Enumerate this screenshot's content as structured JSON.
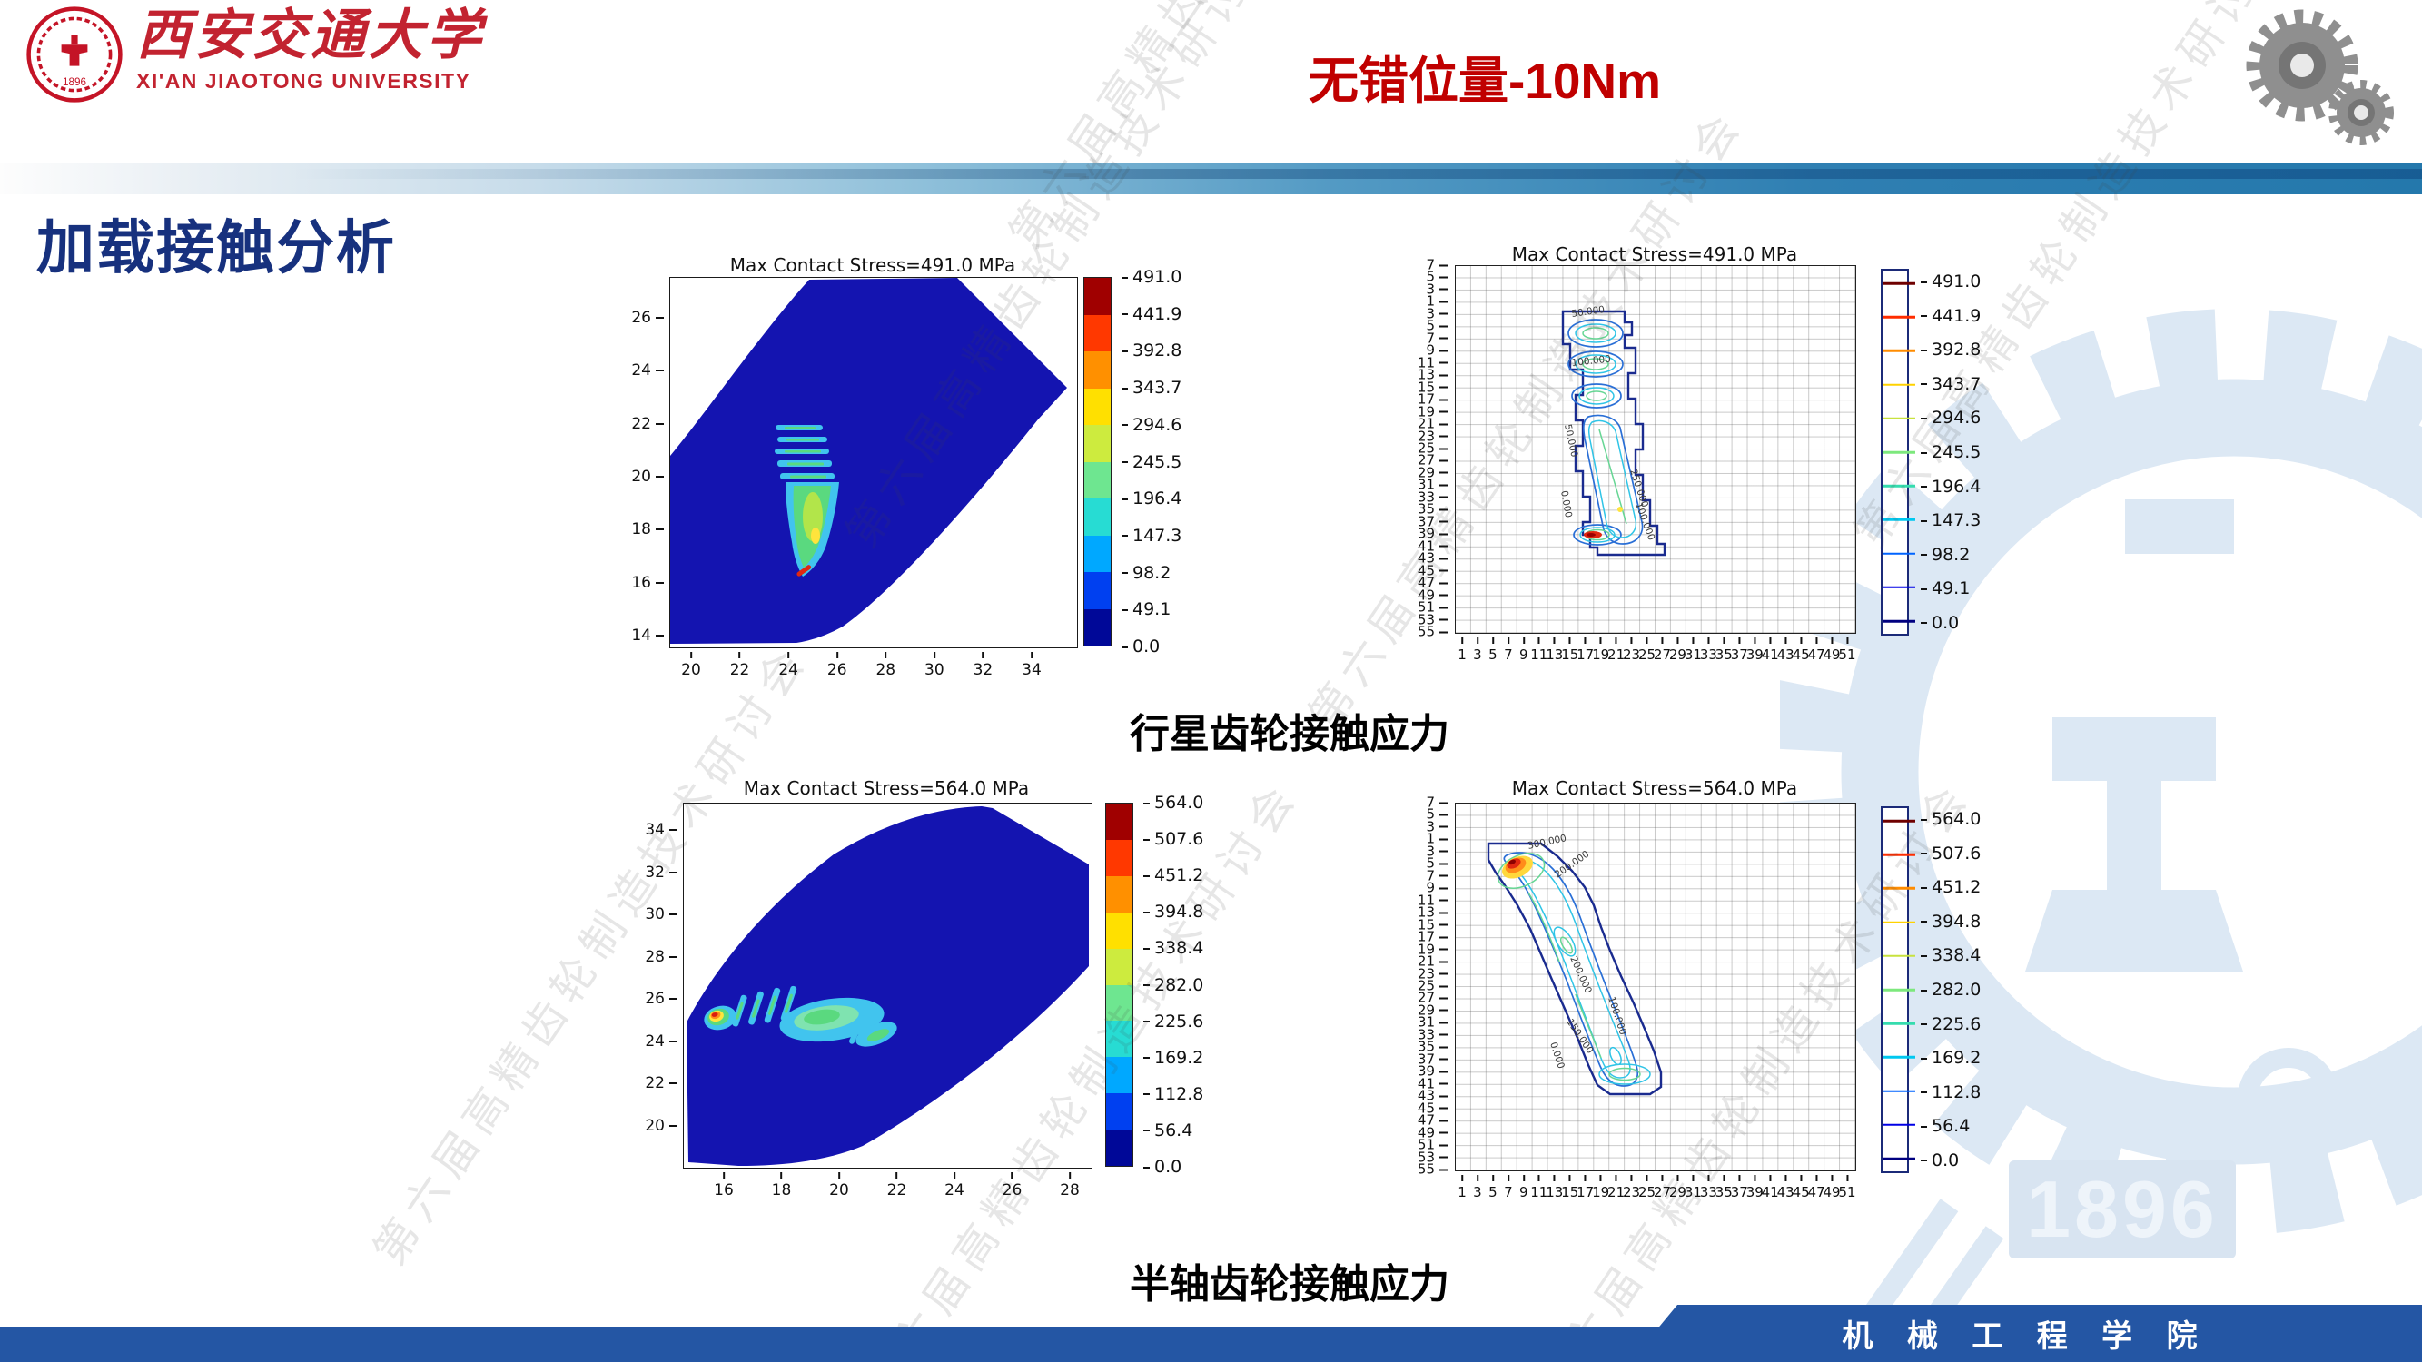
{
  "header": {
    "logo": {
      "university_cn": "西安交通大学",
      "university_en": "XI'AN JIAOTONG UNIVERSITY",
      "emblem_year": "1896"
    },
    "slide_title": "无错位量-10Nm"
  },
  "section_title": "加载接触分析",
  "captions": {
    "planet_gear": "行星齿轮接触应力",
    "side_gear": "半轴齿轮接触应力"
  },
  "footer": {
    "department": "机 械 工 程 学 院"
  },
  "watermark": {
    "conference_text": "第六届高精齿轮制造技术研讨会",
    "year_text": "1896"
  },
  "chart_data": [
    {
      "type": "heatmap",
      "plot_style": "filled_contour",
      "gear": "planet gear (行星齿轮)",
      "title": "Max Contact Stress=491.0 MPa",
      "max_contact_stress_mpa": 491.0,
      "unit": "MPa",
      "grid": false,
      "x_ticks": [
        "20",
        "22",
        "24",
        "26",
        "28",
        "30",
        "32",
        "34"
      ],
      "y_ticks": [
        "26",
        "24",
        "22",
        "20",
        "18",
        "16",
        "14"
      ],
      "xlim": [
        19,
        36
      ],
      "ylim": [
        13.5,
        27.5
      ],
      "hotspot": {
        "x": 24.6,
        "y": 16.4,
        "stress_mpa": 491.0
      },
      "contact_zone": {
        "x_range": [
          23.4,
          26.0
        ],
        "y_range": [
          16.3,
          22.0
        ]
      },
      "colorbar": {
        "labels": [
          "491.0",
          "441.9",
          "392.8",
          "343.7",
          "294.6",
          "245.5",
          "196.4",
          "147.3",
          "98.2",
          "49.1",
          "0.0"
        ],
        "band_colors": [
          "#a00000",
          "#ff3800",
          "#ff9000",
          "#ffe000",
          "#cdeb3e",
          "#6ee690",
          "#27dcd3",
          "#00a8ff",
          "#0040f0",
          "#000898"
        ]
      }
    },
    {
      "type": "heatmap",
      "plot_style": "contour_lines",
      "gear": "planet gear (行星齿轮)",
      "title": "Max Contact Stress=491.0 MPa",
      "max_contact_stress_mpa": 491.0,
      "unit": "MPa",
      "grid": true,
      "x_ticks": [
        "1",
        "3",
        "5",
        "7",
        "9",
        "11",
        "13",
        "15",
        "17",
        "19",
        "21",
        "23",
        "25",
        "27",
        "29",
        "31",
        "33",
        "35",
        "37",
        "39",
        "41",
        "43",
        "45",
        "47",
        "49",
        "51"
      ],
      "y_ticks": [
        "7",
        "5",
        "3",
        "1",
        "3",
        "5",
        "7",
        "9",
        "11",
        "13",
        "15",
        "17",
        "19",
        "21",
        "23",
        "25",
        "27",
        "29",
        "31",
        "33",
        "35",
        "37",
        "39",
        "41",
        "43",
        "45",
        "47",
        "49",
        "51",
        "53",
        "55"
      ],
      "hotspot": {
        "x": 17,
        "y": 39,
        "stress_mpa": 491.0
      },
      "contour_labels": [
        "50.000",
        "100.000",
        "50.000",
        "0.000",
        "250.000",
        "100.000"
      ],
      "colorbar": {
        "labels": [
          "491.0",
          "441.9",
          "392.8",
          "343.7",
          "294.6",
          "245.5",
          "196.4",
          "147.3",
          "98.2",
          "49.1",
          "0.0"
        ],
        "line_colors": [
          "#6e0000",
          "#ff2d00",
          "#ff8c00",
          "#ffd200",
          "#c8e23e",
          "#7de87d",
          "#35dcae",
          "#00c8f0",
          "#0064ff",
          "#0000e6",
          "#000080"
        ]
      }
    },
    {
      "type": "heatmap",
      "plot_style": "filled_contour",
      "gear": "side/half-shaft gear (半轴齿轮)",
      "title": "Max Contact Stress=564.0 MPa",
      "max_contact_stress_mpa": 564.0,
      "unit": "MPa",
      "grid": false,
      "x_ticks": [
        "16",
        "18",
        "20",
        "22",
        "24",
        "26",
        "28"
      ],
      "y_ticks": [
        "34",
        "32",
        "30",
        "28",
        "26",
        "24",
        "22",
        "20"
      ],
      "xlim": [
        14.5,
        28.7
      ],
      "ylim": [
        18,
        35.3
      ],
      "hotspot": {
        "x": 15.8,
        "y": 25.2,
        "stress_mpa": 564.0
      },
      "contact_zone": {
        "x_range": [
          15.5,
          21.2
        ],
        "y_range": [
          23.8,
          26.3
        ]
      },
      "colorbar": {
        "labels": [
          "564.0",
          "507.6",
          "451.2",
          "394.8",
          "338.4",
          "282.0",
          "225.6",
          "169.2",
          "112.8",
          "56.4",
          "0.0"
        ],
        "band_colors": [
          "#a00000",
          "#ff3800",
          "#ff9000",
          "#ffe000",
          "#cdeb3e",
          "#6ee690",
          "#27dcd3",
          "#00a8ff",
          "#0040f0",
          "#000898"
        ]
      }
    },
    {
      "type": "heatmap",
      "plot_style": "contour_lines",
      "gear": "side/half-shaft gear (半轴齿轮)",
      "title": "Max Contact Stress=564.0 MPa",
      "max_contact_stress_mpa": 564.0,
      "unit": "MPa",
      "grid": true,
      "x_ticks": [
        "1",
        "3",
        "5",
        "7",
        "9",
        "11",
        "13",
        "15",
        "17",
        "19",
        "21",
        "23",
        "25",
        "27",
        "29",
        "31",
        "33",
        "35",
        "37",
        "39",
        "41",
        "43",
        "45",
        "47",
        "49",
        "51"
      ],
      "y_ticks": [
        "7",
        "5",
        "3",
        "1",
        "3",
        "5",
        "7",
        "9",
        "11",
        "13",
        "15",
        "17",
        "19",
        "21",
        "23",
        "25",
        "27",
        "29",
        "31",
        "33",
        "35",
        "37",
        "39",
        "41",
        "43",
        "45",
        "47",
        "49",
        "51",
        "53",
        "55"
      ],
      "hotspot": {
        "x": 8,
        "y": 6,
        "stress_mpa": 564.0
      },
      "contour_labels": [
        "300.000",
        "200.000",
        "200.000",
        "100.000",
        "150.000",
        "0.000"
      ],
      "colorbar": {
        "labels": [
          "564.0",
          "507.6",
          "451.2",
          "394.8",
          "338.4",
          "282.0",
          "225.6",
          "169.2",
          "112.8",
          "56.4",
          "0.0"
        ],
        "line_colors": [
          "#6e0000",
          "#ff2d00",
          "#ff8c00",
          "#ffd200",
          "#c8e23e",
          "#7de87d",
          "#35dcae",
          "#00c8f0",
          "#0064ff",
          "#0000e6",
          "#000080"
        ]
      }
    }
  ]
}
